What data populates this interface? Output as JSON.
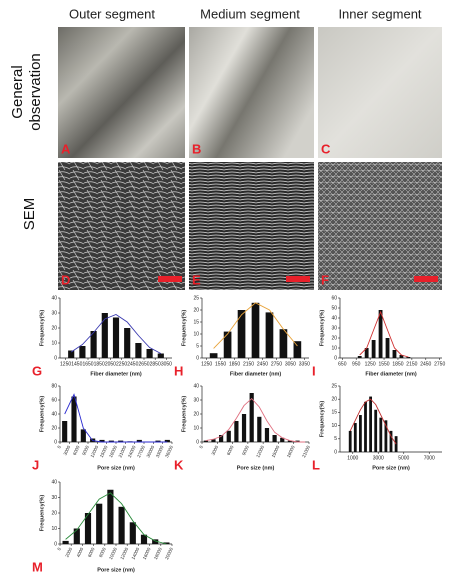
{
  "columns": [
    "Outer segment",
    "Medium segment",
    "Inner segment"
  ],
  "rows": [
    {
      "lines": [
        "General",
        "observation"
      ]
    },
    {
      "lines": [
        "SEM"
      ]
    }
  ],
  "photo_panels": [
    "A",
    "B",
    "C",
    "D",
    "E",
    "F"
  ],
  "chart_data": [
    {
      "type": "histogram",
      "panel": "G",
      "x_label": "Fiber diameter (nm)",
      "y_label": "Frequency(%)",
      "color": "#111111",
      "bins": [
        1250,
        1450,
        1650,
        1850,
        2050,
        2250,
        2450,
        2650,
        2850,
        3050
      ],
      "values": [
        5,
        8,
        18,
        30,
        27,
        20,
        10,
        6,
        3
      ],
      "xlim": [
        1150,
        3150
      ],
      "xticks": [
        1250,
        1450,
        1650,
        1850,
        2050,
        2250,
        2450,
        2650,
        2850,
        3050
      ],
      "ylim": [
        0,
        40
      ],
      "yticks": [
        0,
        10,
        20,
        30,
        40
      ],
      "fit": {
        "color": "#3a3ab0",
        "x": [
          1350,
          1550,
          1750,
          1950,
          2150,
          2350,
          2550,
          2750,
          2950
        ],
        "values": [
          4,
          9,
          17,
          26,
          29,
          24,
          15,
          7,
          3
        ]
      }
    },
    {
      "type": "histogram",
      "panel": "H",
      "x_label": "Fiber diameter (nm)",
      "y_label": "Frequency(%)",
      "color": "#111111",
      "bins": [
        1250,
        1550,
        1850,
        2150,
        2450,
        2750,
        3050,
        3350
      ],
      "values": [
        2,
        11,
        20,
        23,
        19,
        12,
        7
      ],
      "xlim": [
        1150,
        3450
      ],
      "xticks": [
        1250,
        1550,
        1850,
        2150,
        2450,
        2750,
        3050,
        3350
      ],
      "ylim": [
        0,
        25
      ],
      "yticks": [
        0,
        5,
        10,
        15,
        20,
        25
      ],
      "fit": {
        "color": "#e8a33a",
        "x": [
          1400,
          1700,
          2000,
          2300,
          2600,
          2900,
          3200
        ],
        "values": [
          4,
          10,
          18,
          23,
          20,
          12,
          5
        ]
      }
    },
    {
      "type": "histogram",
      "panel": "I",
      "x_label": "Fiber diameter (nm)",
      "y_label": "Frequency(%)",
      "color": "#111111",
      "bins": [
        950,
        1100,
        1250,
        1400,
        1550,
        1700,
        1850,
        2000,
        2150
      ],
      "values": [
        2,
        10,
        18,
        48,
        20,
        8,
        3,
        1
      ],
      "xlim": [
        600,
        2800
      ],
      "xticks": [
        650,
        950,
        1250,
        1550,
        1850,
        2150,
        2450,
        2750
      ],
      "ylim": [
        0,
        60
      ],
      "yticks": [
        0,
        10,
        20,
        30,
        40,
        50,
        60
      ],
      "fit": {
        "color": "#d03030",
        "x": [
          1025,
          1175,
          1325,
          1475,
          1625,
          1775,
          1925,
          2075
        ],
        "values": [
          3,
          10,
          28,
          46,
          28,
          10,
          3,
          1
        ]
      }
    },
    {
      "type": "histogram",
      "panel": "J",
      "x_label": "Pore size (nm)",
      "y_label": "Frequency(%)",
      "color": "#111111",
      "xtick_rotate": true,
      "bins": [
        0,
        3000,
        6000,
        9000,
        12000,
        15000,
        18000,
        21000,
        24000,
        27000,
        30000,
        33000,
        36000
      ],
      "values": [
        30,
        65,
        18,
        5,
        3,
        2,
        2,
        1,
        3,
        0,
        2,
        3
      ],
      "xlim": [
        0,
        36000
      ],
      "xticks": [
        0,
        3000,
        6000,
        9000,
        12000,
        15000,
        18000,
        21000,
        24000,
        27000,
        30000,
        33000,
        36000
      ],
      "ylim": [
        0,
        80
      ],
      "yticks": [
        0,
        20,
        40,
        60,
        80
      ],
      "fit": {
        "color": "#2a2ad0",
        "x": [
          1500,
          4500,
          7500,
          10500,
          13500,
          16500,
          19500,
          22500,
          25500,
          28500,
          31500,
          34500
        ],
        "values": [
          40,
          68,
          20,
          2,
          0,
          0,
          0,
          0,
          0,
          0,
          0,
          0
        ]
      }
    },
    {
      "type": "histogram",
      "panel": "K",
      "x_label": "Pore size (nm)",
      "y_label": "Frequency(%)",
      "color": "#111111",
      "xtick_rotate": true,
      "bins": [
        0,
        1500,
        3000,
        4500,
        6000,
        7500,
        9000,
        10500,
        12000,
        13500,
        15000,
        16500,
        18000,
        19500,
        21000
      ],
      "values": [
        1,
        2,
        5,
        8,
        15,
        20,
        35,
        18,
        10,
        5,
        3,
        1,
        1,
        0
      ],
      "xlim": [
        0,
        21000
      ],
      "xticks": [
        0,
        3000,
        6000,
        9000,
        12000,
        15000,
        18000,
        21000
      ],
      "ylim": [
        0,
        40
      ],
      "yticks": [
        0,
        10,
        20,
        30,
        40
      ],
      "fit": {
        "color": "#e07080",
        "x": [
          750,
          2250,
          3750,
          5250,
          6750,
          8250,
          9750,
          11250,
          12750,
          14250,
          15750,
          17250,
          18750,
          20250
        ],
        "values": [
          1,
          2,
          4,
          9,
          17,
          26,
          31,
          25,
          15,
          7,
          3,
          1,
          0,
          0
        ]
      }
    },
    {
      "type": "histogram",
      "panel": "L",
      "x_label": "Pore size (nm)",
      "y_label": "Frequency(%)",
      "color": "#111111",
      "bins": [
        600,
        1000,
        1400,
        1800,
        2200,
        2600,
        3000,
        3400,
        3800,
        4200,
        4600
      ],
      "values": [
        8,
        11,
        14,
        19,
        21,
        16,
        13,
        12,
        8,
        6
      ],
      "xlim": [
        0,
        8000
      ],
      "xticks": [
        1000,
        3000,
        5000,
        7000
      ],
      "ylim": [
        0,
        25
      ],
      "yticks": [
        0,
        5,
        10,
        15,
        20,
        25
      ],
      "fit": {
        "color": "#c03030",
        "x": [
          800,
          1200,
          1600,
          2000,
          2400,
          2800,
          3200,
          3600,
          4000,
          4400
        ],
        "values": [
          8,
          12,
          16,
          19,
          20,
          18,
          14,
          10,
          6,
          3
        ]
      }
    },
    {
      "type": "histogram",
      "panel": "M",
      "x_label": "Pore size (nm)",
      "y_label": "Frequency(%)",
      "color": "#111111",
      "xtick_rotate": true,
      "bins": [
        0,
        2000,
        4000,
        6000,
        8000,
        10000,
        12000,
        14000,
        16000,
        18000,
        20000
      ],
      "values": [
        2,
        10,
        20,
        26,
        35,
        24,
        14,
        6,
        3,
        1
      ],
      "xlim": [
        0,
        20000
      ],
      "xticks": [
        0,
        2000,
        4000,
        6000,
        8000,
        10000,
        12000,
        14000,
        16000,
        18000,
        20000
      ],
      "ylim": [
        0,
        40
      ],
      "yticks": [
        0,
        10,
        20,
        30,
        40
      ],
      "fit": {
        "color": "#2a8a3a",
        "x": [
          1000,
          3000,
          5000,
          7000,
          9000,
          11000,
          13000,
          15000,
          17000,
          19000
        ],
        "values": [
          3,
          9,
          19,
          29,
          33,
          26,
          15,
          6,
          2,
          0
        ]
      }
    }
  ]
}
